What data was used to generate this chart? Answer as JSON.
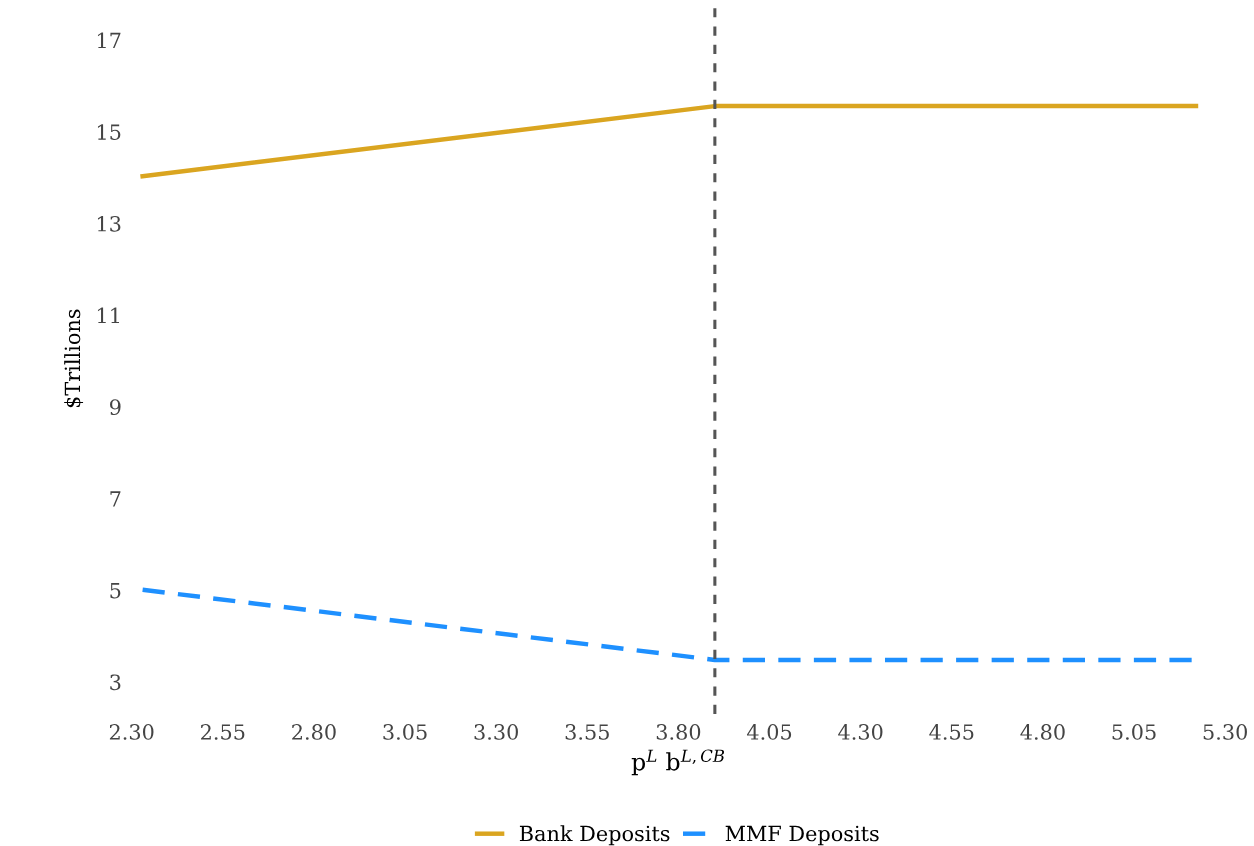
{
  "chart_data": {
    "type": "line",
    "xlabel": "p$^{L}$ b$^{L,CB}$",
    "ylabel": "$Trillions",
    "series": [
      {
        "name": "Bank Deposits",
        "color": "#daa520",
        "line_style": "solid",
        "x": [
          2.33,
          3.9,
          5.22
        ],
        "values": [
          14.03,
          15.56,
          15.56
        ]
      },
      {
        "name": "MMF Deposits",
        "color": "#1e90ff",
        "line_style": "dashed",
        "x": [
          2.33,
          3.9,
          5.22
        ],
        "values": [
          5.01,
          3.48,
          3.48
        ]
      }
    ],
    "xlim": [
      2.3,
      5.3
    ],
    "ylim": [
      2.3,
      17.8
    ],
    "xticks": [
      {
        "value": 2.3,
        "label": "2.30"
      },
      {
        "value": 2.55,
        "label": "2.55"
      },
      {
        "value": 2.8,
        "label": "2.80"
      },
      {
        "value": 3.05,
        "label": "3.05"
      },
      {
        "value": 3.3,
        "label": "3.30"
      },
      {
        "value": 3.55,
        "label": "3.55"
      },
      {
        "value": 3.8,
        "label": "3.80"
      },
      {
        "value": 4.05,
        "label": "4.05"
      },
      {
        "value": 4.3,
        "label": "4.30"
      },
      {
        "value": 4.55,
        "label": "4.55"
      },
      {
        "value": 4.8,
        "label": "4.80"
      },
      {
        "value": 5.05,
        "label": "5.05"
      },
      {
        "value": 5.3,
        "label": "5.30"
      }
    ],
    "yticks": [
      3,
      5,
      7,
      9,
      11,
      13,
      15,
      17
    ],
    "ref_lines": [
      {
        "axis": "x",
        "value": 3.9,
        "color": "#555555",
        "line_style": "dashed"
      }
    ],
    "grid": false,
    "legend": "bottom",
    "marker": "none"
  }
}
